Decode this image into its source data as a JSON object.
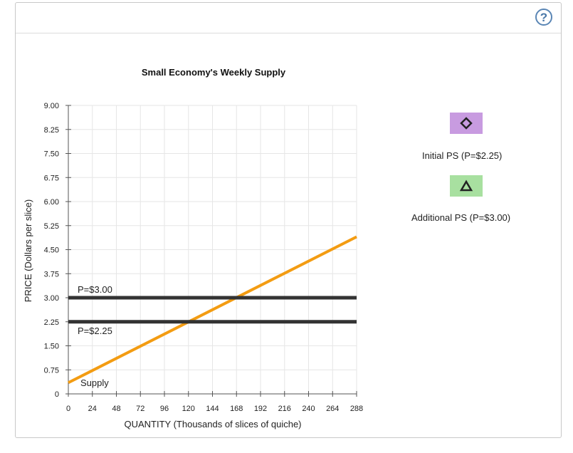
{
  "help": {
    "label": "?"
  },
  "chart_data": {
    "type": "line",
    "title": "Small Economy's Weekly Supply",
    "xlabel": "QUANTITY (Thousands of slices of quiche)",
    "ylabel": "PRICE (Dollars per slice)",
    "xlim": [
      0,
      288
    ],
    "ylim": [
      0,
      9
    ],
    "xticks": [
      0,
      24,
      48,
      72,
      96,
      120,
      144,
      168,
      192,
      216,
      240,
      264,
      288
    ],
    "yticks": [
      0,
      0.75,
      1.5,
      2.25,
      3.0,
      3.75,
      4.5,
      5.25,
      6.0,
      6.75,
      7.5,
      8.25,
      9.0
    ],
    "ytick_labels": [
      "0",
      "0.75",
      "1.50",
      "2.25",
      "3.00",
      "3.75",
      "4.50",
      "5.25",
      "6.00",
      "6.75",
      "7.50",
      "8.25",
      "9.00"
    ],
    "grid": true,
    "series": [
      {
        "name": "Supply",
        "color": "#f39c12",
        "x": [
          0,
          288
        ],
        "y": [
          0.35,
          4.9
        ]
      },
      {
        "name": "P=$3.00",
        "color": "#333333",
        "x": [
          0,
          288
        ],
        "y": [
          3.0,
          3.0
        ]
      },
      {
        "name": "P=$2.25",
        "color": "#333333",
        "x": [
          0,
          288
        ],
        "y": [
          2.25,
          2.25
        ]
      }
    ]
  },
  "legend": [
    {
      "label": "Initial PS (P=$2.25)",
      "color": "#c89be0",
      "icon": "diamond-icon"
    },
    {
      "label": "Additional PS (P=$3.00)",
      "color": "#a8e0a0",
      "icon": "triangle-icon"
    }
  ]
}
